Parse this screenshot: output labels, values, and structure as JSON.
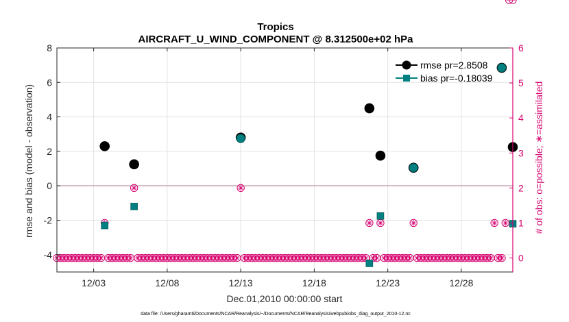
{
  "chart_data": {
    "type": "scatter",
    "title": "Tropics",
    "subtitle": "AIRCRAFT_U_WIND_COMPONENT @ 8.312500e+02 hPa",
    "xlabel": "Dec.01,2010 00:00:00 start",
    "ylabel": "rmse and bias (model - observation)",
    "y2label": "# of obs: o=possible; ∗=assimilated",
    "footnote": "data file: /Users/gharamti/Documents/NCAR/Reanalysis/~/Documents/NCAR/Reanalysis/webpub/obs_diag_output_2010-12.nc",
    "xlim": [
      0.5,
      31.5
    ],
    "ylim": [
      -5,
      8
    ],
    "y2lim": [
      -0.4,
      6
    ],
    "x_ticks": [
      3,
      8,
      13,
      18,
      23,
      28
    ],
    "x_tick_labels": [
      "12/03",
      "12/08",
      "12/13",
      "12/18",
      "12/23",
      "12/28"
    ],
    "y_ticks": [
      -4,
      -2,
      0,
      2,
      4,
      6,
      8
    ],
    "y_tick_labels": [
      "-4",
      "-2",
      "0",
      "2",
      "4",
      "6",
      "8"
    ],
    "y2_ticks": [
      0,
      1,
      2,
      3,
      4,
      5,
      6
    ],
    "y2_tick_labels": [
      "0",
      "1",
      "2",
      "3",
      "4",
      "5",
      "6"
    ],
    "zero_line": 0,
    "series": [
      {
        "name": "rmse",
        "legend_label": "rmse pr=2.8508",
        "color": "#000000",
        "marker": "circle",
        "x": [
          3.75,
          5.75,
          13.0,
          21.75,
          22.5,
          24.75,
          30.75,
          31.5
        ],
        "values": [
          2.3,
          1.25,
          2.8,
          4.5,
          1.75,
          1.05,
          6.85,
          2.25
        ]
      },
      {
        "name": "bias",
        "legend_label": "bias pr=-0.18039",
        "color": "#008080",
        "marker": "square",
        "x": [
          3.75,
          5.75,
          13.0,
          21.75,
          22.5,
          24.75,
          30.75,
          31.5
        ],
        "values": [
          -2.3,
          -1.2,
          2.75,
          -4.5,
          -1.75,
          1.05,
          6.85,
          -2.2
        ]
      }
    ],
    "obs_series": {
      "name": "# of obs",
      "color": "#d6006e",
      "possible_x": [
        0.5,
        0.75,
        1.0,
        1.25,
        1.5,
        1.75,
        2.0,
        2.25,
        2.5,
        2.75,
        3.0,
        3.25,
        3.5,
        3.75,
        4.0,
        4.25,
        4.5,
        4.75,
        5.0,
        5.25,
        5.5,
        5.75,
        6.0,
        6.25,
        6.5,
        6.75,
        7.0,
        7.25,
        7.5,
        7.75,
        8.0,
        8.25,
        8.5,
        8.75,
        9.0,
        9.25,
        9.5,
        9.75,
        10.0,
        10.25,
        10.5,
        10.75,
        11.0,
        11.25,
        11.5,
        11.75,
        12.0,
        12.25,
        12.5,
        12.75,
        13.0,
        13.25,
        13.5,
        13.75,
        14.0,
        14.25,
        14.5,
        14.75,
        15.0,
        15.25,
        15.5,
        15.75,
        16.0,
        16.25,
        16.5,
        16.75,
        17.0,
        17.25,
        17.5,
        17.75,
        18.0,
        18.25,
        18.5,
        18.75,
        19.0,
        19.25,
        19.5,
        19.75,
        20.0,
        20.25,
        20.5,
        20.75,
        21.0,
        21.25,
        21.5,
        21.75,
        22.0,
        22.25,
        22.5,
        22.75,
        23.0,
        23.25,
        23.5,
        23.75,
        24.0,
        24.25,
        24.5,
        24.75,
        25.0,
        25.25,
        25.5,
        25.75,
        26.0,
        26.25,
        26.5,
        26.75,
        27.0,
        27.25,
        27.5,
        27.75,
        28.0,
        28.25,
        28.5,
        28.75,
        29.0,
        29.25,
        29.5,
        29.75,
        30.0,
        30.25,
        30.5,
        30.75,
        31.0,
        31.25,
        31.5
      ],
      "possible_y": [
        0,
        0,
        0,
        0,
        0,
        0,
        0,
        0,
        0,
        0,
        0,
        0,
        0,
        1,
        0,
        0,
        0,
        0,
        0,
        0,
        0,
        2,
        0,
        0,
        0,
        0,
        0,
        0,
        0,
        0,
        0,
        0,
        0,
        0,
        0,
        0,
        0,
        0,
        0,
        0,
        0,
        0,
        0,
        0,
        0,
        0,
        0,
        0,
        0,
        0,
        2,
        0,
        0,
        0,
        0,
        0,
        0,
        0,
        0,
        0,
        0,
        0,
        0,
        0,
        0,
        0,
        0,
        0,
        0,
        0,
        0,
        0,
        0,
        0,
        0,
        0,
        0,
        0,
        0,
        0,
        0,
        0,
        0,
        0,
        0,
        1,
        0,
        0,
        1,
        0,
        0,
        0,
        0,
        0,
        0,
        0,
        0,
        1,
        0,
        0,
        0,
        0,
        0,
        0,
        0,
        0,
        0,
        0,
        0,
        0,
        0,
        0,
        0,
        0,
        0,
        0,
        0,
        0,
        0,
        1,
        0,
        0,
        1
      ],
      "assimilated_x": [
        0.5,
        0.75,
        1.0,
        1.25,
        1.5,
        1.75,
        2.0,
        2.25,
        2.5,
        2.75,
        3.0,
        3.25,
        3.5,
        3.75,
        4.0,
        4.25,
        4.5,
        4.75,
        5.0,
        5.25,
        5.5,
        5.75,
        6.0,
        6.25,
        6.5,
        6.75,
        7.0,
        7.25,
        7.5,
        7.75,
        8.0,
        8.25,
        8.5,
        8.75,
        9.0,
        9.25,
        9.5,
        9.75,
        10.0,
        10.25,
        10.5,
        10.75,
        11.0,
        11.25,
        11.5,
        11.75,
        12.0,
        12.25,
        12.5,
        12.75,
        13.0,
        13.25,
        13.5,
        13.75,
        14.0,
        14.25,
        14.5,
        14.75,
        15.0,
        15.25,
        15.5,
        15.75,
        16.0,
        16.25,
        16.5,
        16.75,
        17.0,
        17.25,
        17.5,
        17.75,
        18.0,
        18.25,
        18.5,
        18.75,
        19.0,
        19.25,
        19.5,
        19.75,
        20.0,
        20.25,
        20.5,
        20.75,
        21.0,
        21.25,
        21.5,
        21.75,
        22.0,
        22.25,
        22.5,
        22.75,
        23.0,
        23.25,
        23.5,
        23.75,
        24.0,
        24.25,
        24.5,
        24.75,
        25.0,
        25.25,
        25.5,
        25.75,
        26.0,
        26.25,
        26.5,
        26.75,
        27.0,
        27.25,
        27.5,
        27.75,
        28.0,
        28.25,
        28.5,
        28.75,
        29.0,
        29.25,
        29.5,
        29.75,
        30.0,
        30.25,
        30.5,
        30.75,
        31.0,
        31.25,
        31.5
      ],
      "assimilated_y": [
        0,
        0,
        0,
        0,
        0,
        0,
        0,
        0,
        0,
        0,
        0,
        0,
        0,
        1,
        0,
        0,
        0,
        0,
        0,
        0,
        0,
        2,
        0,
        0,
        0,
        0,
        0,
        0,
        0,
        0,
        0,
        0,
        0,
        0,
        0,
        0,
        0,
        0,
        0,
        0,
        0,
        0,
        0,
        0,
        0,
        0,
        0,
        0,
        0,
        0,
        2,
        0,
        0,
        0,
        0,
        0,
        0,
        0,
        0,
        0,
        0,
        0,
        0,
        0,
        0,
        0,
        0,
        0,
        0,
        0,
        0,
        0,
        0,
        0,
        0,
        0,
        0,
        0,
        0,
        0,
        0,
        0,
        0,
        0,
        0,
        1,
        0,
        0,
        1,
        0,
        0,
        0,
        0,
        0,
        0,
        0,
        0,
        1,
        0,
        0,
        0,
        0,
        0,
        0,
        0,
        0,
        0,
        0,
        0,
        0,
        0,
        0,
        0,
        0,
        0,
        0,
        0,
        0,
        0,
        1,
        0,
        0,
        1
      ]
    },
    "legend_position": "top-right"
  }
}
